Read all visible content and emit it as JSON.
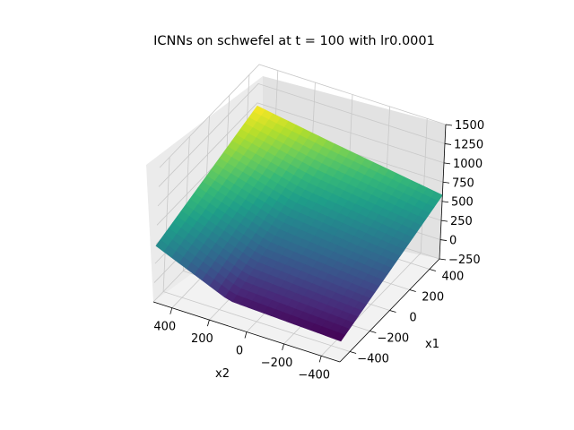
{
  "chart_data": {
    "type": "surface",
    "title": "ICNNs on schwefel at t = 100 with lr0.0001",
    "xlabel": "x1",
    "ylabel": "x2",
    "zlabel": "",
    "x_range": [
      -500,
      500
    ],
    "y_range": [
      -500,
      500
    ],
    "z_range": [
      -250,
      1500
    ],
    "x_ticks": [
      -400,
      -200,
      0,
      200,
      400
    ],
    "y_ticks": [
      400,
      200,
      0,
      -200,
      -400
    ],
    "z_ticks": [
      -250,
      0,
      250,
      500,
      750,
      1000,
      1250,
      1500
    ],
    "x_tick_labels": [
      "−400",
      "−200",
      "0",
      "200",
      "400"
    ],
    "y_tick_labels": [
      "400",
      "200",
      "0",
      "−200",
      "−400"
    ],
    "z_tick_labels": [
      "−250",
      "0",
      "250",
      "500",
      "750",
      "1000",
      "1250",
      "1500"
    ],
    "colormap": "viridis",
    "grid": true,
    "surface_points": [
      {
        "x1": -500,
        "x2": -500,
        "z": 20
      },
      {
        "x1": -500,
        "x2": 100,
        "z": 80
      },
      {
        "x1": -500,
        "x2": 500,
        "z": 480
      },
      {
        "x1": 500,
        "x2": -500,
        "z": 580
      },
      {
        "x1": 500,
        "x2": 100,
        "z": 800
      },
      {
        "x1": 500,
        "x2": 500,
        "z": 960
      }
    ]
  }
}
